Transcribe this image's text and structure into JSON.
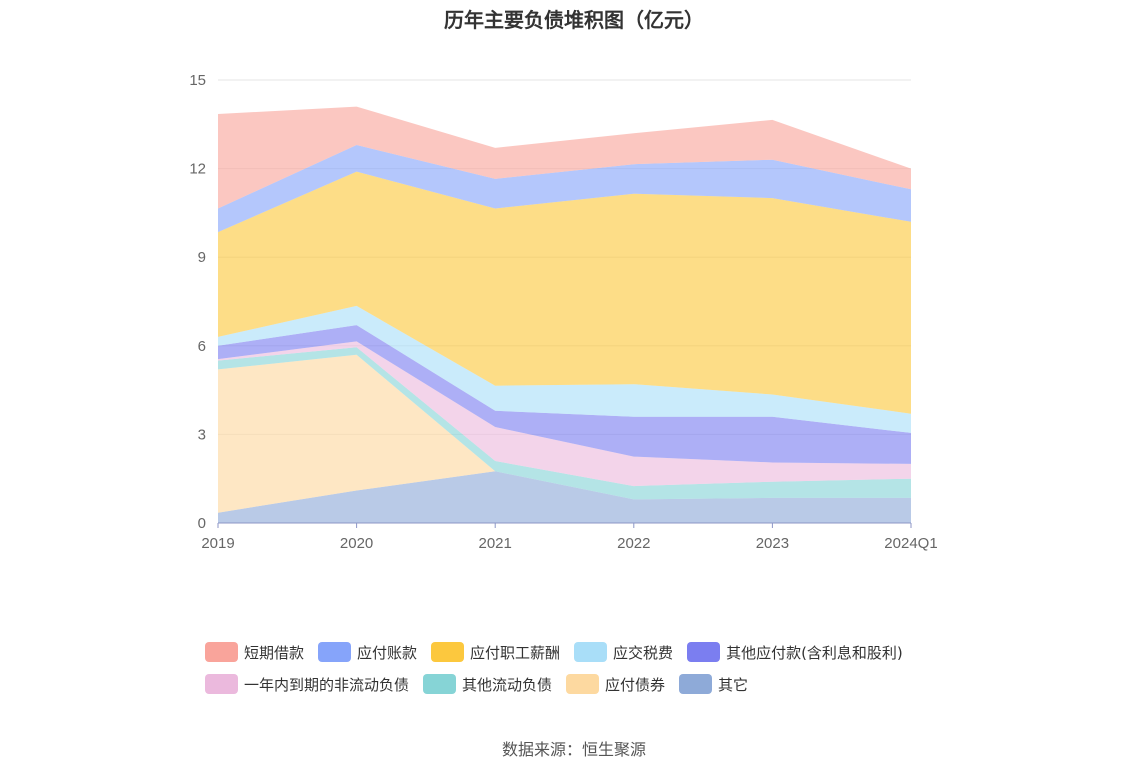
{
  "chart_data": {
    "type": "area",
    "stacked": true,
    "title": "历年主要负债堆积图（亿元）",
    "source": "数据来源：恒生聚源",
    "categories": [
      "2019",
      "2020",
      "2021",
      "2022",
      "2023",
      "2024Q1"
    ],
    "ylim": [
      0,
      15
    ],
    "yticks": [
      0,
      3,
      6,
      9,
      12,
      15
    ],
    "yticks_labels": [
      "0",
      "3",
      "6",
      "9",
      "12",
      "15"
    ],
    "grid": true,
    "legend_position": "bottom",
    "series": [
      {
        "name": "其它",
        "color": "#8eaad8",
        "values": [
          0.35,
          1.1,
          1.75,
          0.8,
          0.85,
          0.85
        ]
      },
      {
        "name": "应付债券",
        "color": "#fdd9a0",
        "values": [
          4.85,
          4.6,
          0,
          0,
          0,
          0
        ]
      },
      {
        "name": "其他流动负债",
        "color": "#86d4d6",
        "values": [
          0.3,
          0.25,
          0.35,
          0.45,
          0.55,
          0.65
        ]
      },
      {
        "name": "一年内到期的非流动负债",
        "color": "#ebb9dd",
        "values": [
          0.05,
          0.2,
          1.15,
          1.0,
          0.65,
          0.5
        ]
      },
      {
        "name": "其他应付款(含利息和股利)",
        "color": "#7b7ef0",
        "values": [
          0.45,
          0.55,
          0.55,
          1.35,
          1.55,
          1.05
        ]
      },
      {
        "name": "应交税费",
        "color": "#a9def8",
        "values": [
          0.3,
          0.65,
          0.85,
          1.1,
          0.75,
          0.65
        ]
      },
      {
        "name": "应付职工薪酬",
        "color": "#fcc83e",
        "values": [
          3.55,
          4.55,
          6.0,
          6.45,
          6.65,
          6.5
        ]
      },
      {
        "name": "应付账款",
        "color": "#86a4fa",
        "values": [
          0.8,
          0.9,
          1.0,
          1.0,
          1.3,
          1.1
        ]
      },
      {
        "name": "短期借款",
        "color": "#f9a49b",
        "values": [
          3.2,
          1.3,
          1.05,
          1.05,
          1.35,
          0.7
        ]
      }
    ]
  },
  "legend_rows": [
    [
      "短期借款",
      "应付账款",
      "应付职工薪酬",
      "应交税费",
      "其他应付款(含利息和股利)"
    ],
    [
      "一年内到期的非流动负债",
      "其他流动负债",
      "应付债券",
      "其它"
    ]
  ]
}
